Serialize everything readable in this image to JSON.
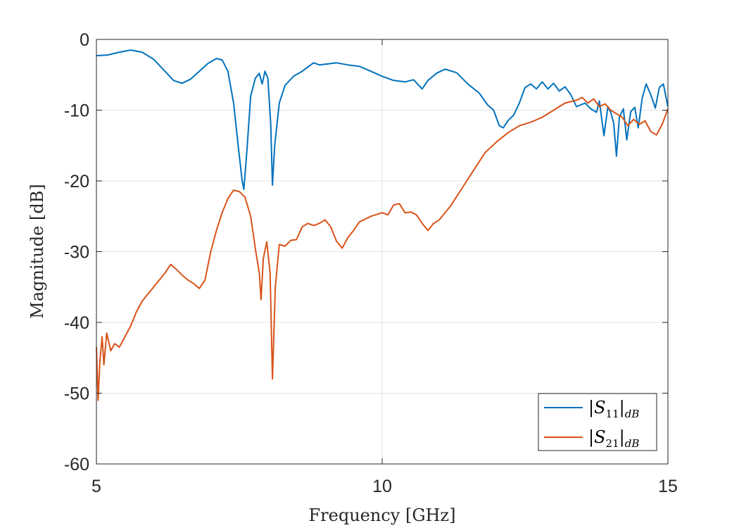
{
  "chart_data": {
    "type": "line",
    "xlabel": "Frequency [GHz]",
    "ylabel": "Magnitude [dB]",
    "xlim": [
      5,
      15
    ],
    "ylim": [
      -60,
      0
    ],
    "xticks": [
      5,
      10,
      15
    ],
    "xtick_labels": [
      "5",
      "10",
      "15"
    ],
    "yticks": [
      0,
      -10,
      -20,
      -30,
      -40,
      -50,
      -60
    ],
    "ytick_labels": [
      "0",
      "-10",
      "-20",
      "-30",
      "-40",
      "-50",
      "-60"
    ],
    "grid": true,
    "legend_position": "bottom-right",
    "series": [
      {
        "name": "|S11|dB",
        "legend_main": "|S",
        "legend_sub": "11",
        "legend_bar": "|",
        "legend_subscript2": "dB",
        "color": "#0072BD",
        "points": [
          [
            5.0,
            -2.3
          ],
          [
            5.2,
            -2.2
          ],
          [
            5.4,
            -1.8
          ],
          [
            5.6,
            -1.5
          ],
          [
            5.8,
            -1.8
          ],
          [
            6.0,
            -2.8
          ],
          [
            6.2,
            -4.5
          ],
          [
            6.35,
            -5.8
          ],
          [
            6.5,
            -6.2
          ],
          [
            6.65,
            -5.6
          ],
          [
            6.8,
            -4.5
          ],
          [
            6.95,
            -3.4
          ],
          [
            7.1,
            -2.7
          ],
          [
            7.2,
            -2.9
          ],
          [
            7.3,
            -4.5
          ],
          [
            7.4,
            -9.0
          ],
          [
            7.48,
            -15.0
          ],
          [
            7.55,
            -20.0
          ],
          [
            7.58,
            -21.2
          ],
          [
            7.63,
            -16.0
          ],
          [
            7.7,
            -8.0
          ],
          [
            7.78,
            -5.5
          ],
          [
            7.85,
            -4.8
          ],
          [
            7.9,
            -6.3
          ],
          [
            7.95,
            -4.5
          ],
          [
            8.0,
            -5.5
          ],
          [
            8.05,
            -12.0
          ],
          [
            8.08,
            -20.6
          ],
          [
            8.12,
            -15.0
          ],
          [
            8.2,
            -9.0
          ],
          [
            8.3,
            -6.5
          ],
          [
            8.45,
            -5.2
          ],
          [
            8.6,
            -4.5
          ],
          [
            8.8,
            -3.3
          ],
          [
            8.9,
            -3.6
          ],
          [
            9.0,
            -3.5
          ],
          [
            9.2,
            -3.3
          ],
          [
            9.4,
            -3.6
          ],
          [
            9.6,
            -3.8
          ],
          [
            9.8,
            -4.5
          ],
          [
            10.0,
            -5.2
          ],
          [
            10.2,
            -5.8
          ],
          [
            10.4,
            -6.0
          ],
          [
            10.55,
            -5.7
          ],
          [
            10.7,
            -7.0
          ],
          [
            10.8,
            -5.8
          ],
          [
            10.95,
            -4.8
          ],
          [
            11.1,
            -4.2
          ],
          [
            11.3,
            -4.7
          ],
          [
            11.5,
            -6.3
          ],
          [
            11.7,
            -7.6
          ],
          [
            11.85,
            -9.3
          ],
          [
            11.95,
            -10.0
          ],
          [
            12.05,
            -12.2
          ],
          [
            12.12,
            -12.5
          ],
          [
            12.2,
            -11.5
          ],
          [
            12.3,
            -10.7
          ],
          [
            12.4,
            -9.0
          ],
          [
            12.5,
            -6.8
          ],
          [
            12.6,
            -6.3
          ],
          [
            12.7,
            -7.0
          ],
          [
            12.8,
            -6.0
          ],
          [
            12.9,
            -7.0
          ],
          [
            13.0,
            -6.2
          ],
          [
            13.1,
            -7.3
          ],
          [
            13.2,
            -6.7
          ],
          [
            13.3,
            -7.8
          ],
          [
            13.4,
            -9.5
          ],
          [
            13.55,
            -9.0
          ],
          [
            13.65,
            -9.8
          ],
          [
            13.75,
            -10.3
          ],
          [
            13.8,
            -8.7
          ],
          [
            13.88,
            -13.6
          ],
          [
            13.95,
            -9.5
          ],
          [
            14.0,
            -10.3
          ],
          [
            14.05,
            -11.8
          ],
          [
            14.1,
            -16.5
          ],
          [
            14.15,
            -11.0
          ],
          [
            14.22,
            -9.8
          ],
          [
            14.28,
            -14.2
          ],
          [
            14.35,
            -10.2
          ],
          [
            14.42,
            -9.6
          ],
          [
            14.48,
            -12.5
          ],
          [
            14.55,
            -8.3
          ],
          [
            14.62,
            -6.3
          ],
          [
            14.7,
            -7.8
          ],
          [
            14.78,
            -9.7
          ],
          [
            14.85,
            -6.8
          ],
          [
            14.92,
            -6.3
          ],
          [
            15.0,
            -9.5
          ]
        ]
      },
      {
        "name": "|S21|dB",
        "legend_main": "|S",
        "legend_sub": "21",
        "legend_bar": "|",
        "legend_subscript2": "dB",
        "color": "#D95319",
        "points": [
          [
            5.0,
            -43.5
          ],
          [
            5.03,
            -51.0
          ],
          [
            5.06,
            -45.5
          ],
          [
            5.1,
            -42.0
          ],
          [
            5.13,
            -46.0
          ],
          [
            5.18,
            -41.5
          ],
          [
            5.25,
            -44.0
          ],
          [
            5.32,
            -43.0
          ],
          [
            5.4,
            -43.5
          ],
          [
            5.5,
            -42.0
          ],
          [
            5.6,
            -40.5
          ],
          [
            5.7,
            -38.5
          ],
          [
            5.8,
            -37.0
          ],
          [
            5.9,
            -36.0
          ],
          [
            6.0,
            -35.0
          ],
          [
            6.1,
            -34.0
          ],
          [
            6.2,
            -33.0
          ],
          [
            6.3,
            -31.8
          ],
          [
            6.4,
            -32.5
          ],
          [
            6.5,
            -33.3
          ],
          [
            6.6,
            -34.0
          ],
          [
            6.7,
            -34.5
          ],
          [
            6.8,
            -35.2
          ],
          [
            6.9,
            -34.0
          ],
          [
            7.0,
            -30.0
          ],
          [
            7.1,
            -27.0
          ],
          [
            7.2,
            -24.5
          ],
          [
            7.3,
            -22.5
          ],
          [
            7.4,
            -21.3
          ],
          [
            7.5,
            -21.5
          ],
          [
            7.6,
            -22.3
          ],
          [
            7.7,
            -25.0
          ],
          [
            7.78,
            -29.5
          ],
          [
            7.85,
            -33.0
          ],
          [
            7.88,
            -36.8
          ],
          [
            7.92,
            -31.0
          ],
          [
            7.98,
            -28.6
          ],
          [
            8.04,
            -33.0
          ],
          [
            8.08,
            -48.0
          ],
          [
            8.13,
            -35.0
          ],
          [
            8.2,
            -29.0
          ],
          [
            8.3,
            -29.2
          ],
          [
            8.4,
            -28.4
          ],
          [
            8.5,
            -28.3
          ],
          [
            8.6,
            -26.5
          ],
          [
            8.7,
            -26.0
          ],
          [
            8.8,
            -26.3
          ],
          [
            8.9,
            -26.0
          ],
          [
            9.0,
            -25.5
          ],
          [
            9.1,
            -26.5
          ],
          [
            9.2,
            -28.5
          ],
          [
            9.3,
            -29.5
          ],
          [
            9.4,
            -28.0
          ],
          [
            9.5,
            -27.0
          ],
          [
            9.6,
            -25.8
          ],
          [
            9.8,
            -25.0
          ],
          [
            10.0,
            -24.5
          ],
          [
            10.1,
            -24.8
          ],
          [
            10.2,
            -23.4
          ],
          [
            10.3,
            -23.2
          ],
          [
            10.4,
            -24.5
          ],
          [
            10.5,
            -24.4
          ],
          [
            10.6,
            -24.8
          ],
          [
            10.7,
            -26.0
          ],
          [
            10.8,
            -27.0
          ],
          [
            10.9,
            -26.0
          ],
          [
            11.0,
            -25.5
          ],
          [
            11.2,
            -23.5
          ],
          [
            11.4,
            -21.0
          ],
          [
            11.6,
            -18.5
          ],
          [
            11.8,
            -16.0
          ],
          [
            12.0,
            -14.5
          ],
          [
            12.2,
            -13.2
          ],
          [
            12.4,
            -12.2
          ],
          [
            12.6,
            -11.7
          ],
          [
            12.8,
            -11.0
          ],
          [
            13.0,
            -10.0
          ],
          [
            13.2,
            -9.0
          ],
          [
            13.4,
            -8.6
          ],
          [
            13.5,
            -8.2
          ],
          [
            13.6,
            -9.0
          ],
          [
            13.7,
            -8.4
          ],
          [
            13.8,
            -9.5
          ],
          [
            13.9,
            -9.1
          ],
          [
            14.0,
            -10.0
          ],
          [
            14.2,
            -11.0
          ],
          [
            14.3,
            -12.2
          ],
          [
            14.4,
            -11.3
          ],
          [
            14.5,
            -12.0
          ],
          [
            14.6,
            -11.5
          ],
          [
            14.7,
            -13.0
          ],
          [
            14.8,
            -13.5
          ],
          [
            14.9,
            -12.0
          ],
          [
            15.0,
            -9.8
          ]
        ]
      }
    ]
  }
}
